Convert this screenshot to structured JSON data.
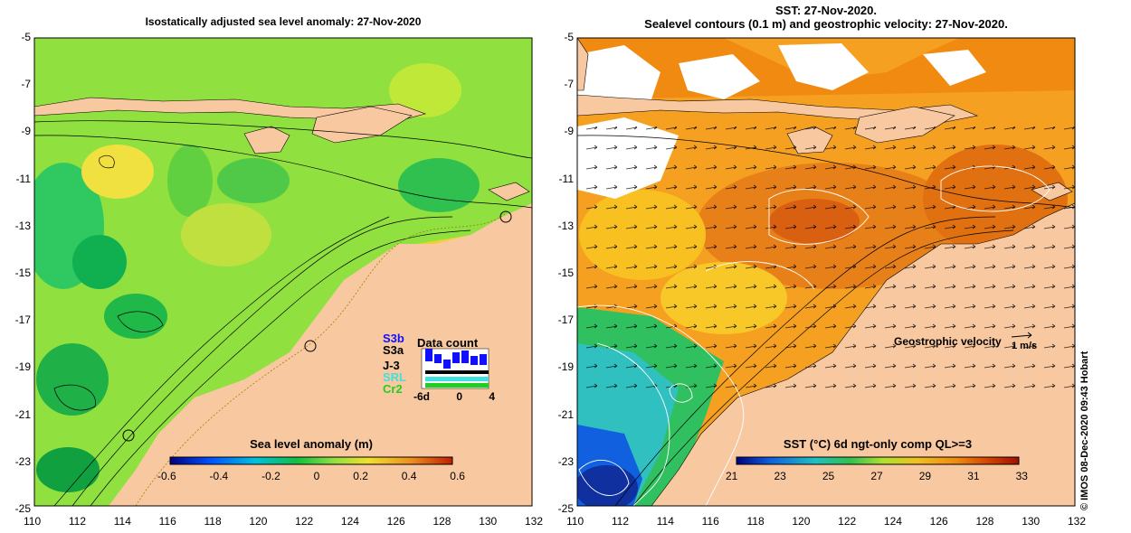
{
  "left_panel": {
    "title": "Isostatically adjusted sea level anomaly: 27-Nov-2020",
    "colorbar": {
      "label": "Sea level anomaly (m)",
      "ticks": [
        "-0.6",
        "-0.4",
        "-0.2",
        "0",
        "0.2",
        "0.4",
        "0.6"
      ]
    },
    "legend": {
      "title": "Data count",
      "satellites": [
        "S3b",
        "S3a",
        "J-3",
        "SRL",
        "Cr2"
      ],
      "sat_colors": [
        "#1010ff",
        "#000000",
        "#000000",
        "#40e0e0",
        "#20d020"
      ],
      "x_ticks": [
        "-6d",
        "0",
        "4"
      ]
    }
  },
  "right_panel": {
    "title_line1": "SST: 27-Nov-2020.",
    "title_line2": "Sealevel contours (0.1 m) and geostrophic velocity: 27-Nov-2020.",
    "velocity_label": "Geostrophic velocity",
    "velocity_scale": "1 m/s",
    "colorbar": {
      "label": "SST (°C) 6d ngt-only comp QL>=3",
      "ticks": [
        "21",
        "23",
        "25",
        "27",
        "29",
        "31",
        "33"
      ]
    }
  },
  "axes": {
    "lat_ticks": [
      "-5",
      "-7",
      "-9",
      "-11",
      "-13",
      "-15",
      "-17",
      "-19",
      "-21",
      "-23",
      "-25"
    ],
    "lon_ticks": [
      "110",
      "112",
      "114",
      "116",
      "118",
      "120",
      "122",
      "124",
      "126",
      "128",
      "130",
      "132"
    ],
    "lon_range": [
      110,
      132
    ],
    "lat_range": [
      -25,
      -5
    ]
  },
  "credit": "© IMOS 08-Dec-2020 09:43 Hobart",
  "colors": {
    "land": "#f8c8a0",
    "sla_ramp": [
      "#000080",
      "#0050ff",
      "#00c0e0",
      "#10c040",
      "#90e040",
      "#f0e030",
      "#f09020",
      "#c02000"
    ],
    "sst_ramp": [
      "#000080",
      "#1060e0",
      "#20c0c0",
      "#30c050",
      "#b0e030",
      "#f0c020",
      "#f08a10",
      "#d04000",
      "#a01000"
    ]
  }
}
